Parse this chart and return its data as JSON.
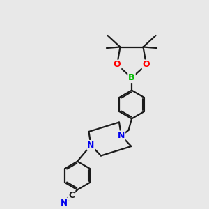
{
  "bg_color": "#e8e8e8",
  "bond_color": "#1a1a1a",
  "atom_colors": {
    "B": "#00bb00",
    "O": "#ff0000",
    "N": "#0000ee",
    "C": "#1a1a1a"
  },
  "figsize": [
    3.0,
    3.0
  ],
  "dpi": 100,
  "xlim": [
    0,
    10
  ],
  "ylim": [
    0,
    10
  ]
}
